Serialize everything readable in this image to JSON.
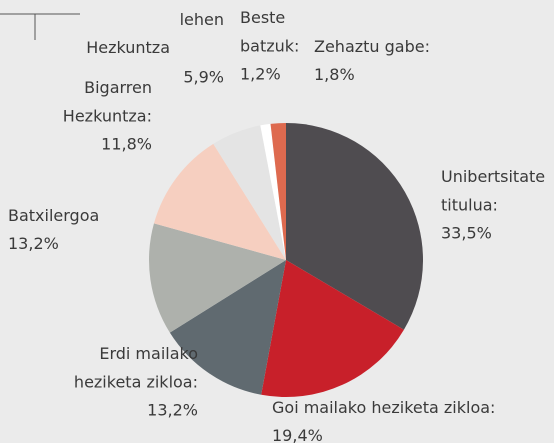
{
  "chart_data": {
    "type": "pie",
    "categories": [
      "Unibertsitate\ntitulua:",
      "Goi mailako heziketa zikloa:",
      "Erdi mailako\nheziketa zikloa:",
      "Batxilergoa",
      "Bigarren\nHezkuntza:",
      "lehen\nHezkuntza",
      "Beste\nbatzuk:",
      "Zehaztu gabe:"
    ],
    "values": [
      33.5,
      19.4,
      13.2,
      13.2,
      11.8,
      5.9,
      1.2,
      1.8
    ],
    "value_labels": [
      "33,5%",
      "19,4%",
      "13,2%",
      "13,2%",
      "11,8%",
      "5,9%",
      "1,2%",
      "1,8%"
    ],
    "colors": [
      "#4f4c50",
      "#c8202a",
      "#606a70",
      "#aeb1ac",
      "#f6cfc0",
      "#e4e4e4",
      "#ffffff",
      "#de6a4f"
    ]
  }
}
